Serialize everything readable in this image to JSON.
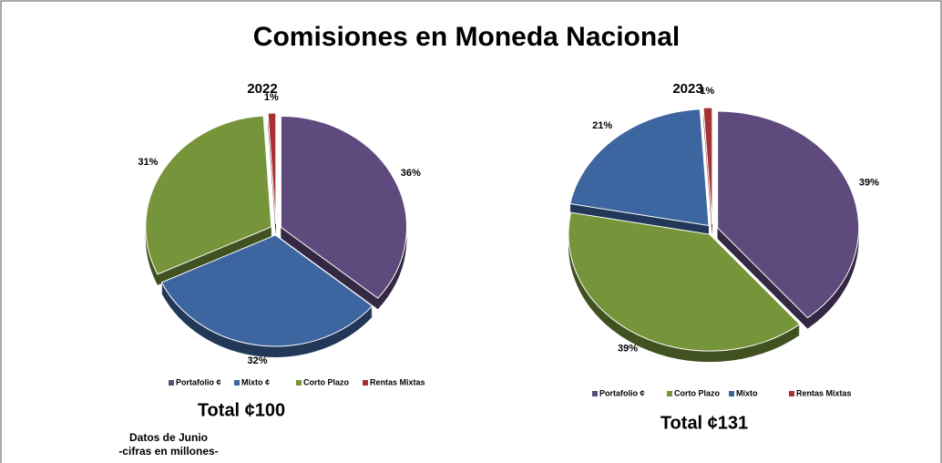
{
  "title": "Comisiones en Moneda Nacional",
  "note": [
    "Datos de Junio",
    "-cifras en millones-"
  ],
  "chart_data": [
    {
      "type": "pie",
      "title": "2022",
      "categories": [
        "Portafolio ¢",
        "Mixto ¢",
        "Corto Plazo",
        "Rentas Mixtas"
      ],
      "values": [
        36,
        32,
        31,
        1
      ],
      "value_labels": [
        "36%",
        "32%",
        "31%",
        "1%"
      ],
      "colors": [
        "#5e4a7c",
        "#3d66a0",
        "#76943a",
        "#a83232"
      ],
      "total": "Total ¢100"
    },
    {
      "type": "pie",
      "title": "2023",
      "categories": [
        "Portafolio ¢",
        "Corto Plazo",
        "Mixto",
        "Rentas Mixtas"
      ],
      "values": [
        39,
        39,
        21,
        1
      ],
      "value_labels": [
        "39%",
        "39%",
        "21%",
        "1%"
      ],
      "colors": [
        "#5e4a7c",
        "#76943a",
        "#3d66a0",
        "#a83232"
      ],
      "total": "Total ¢131"
    }
  ]
}
